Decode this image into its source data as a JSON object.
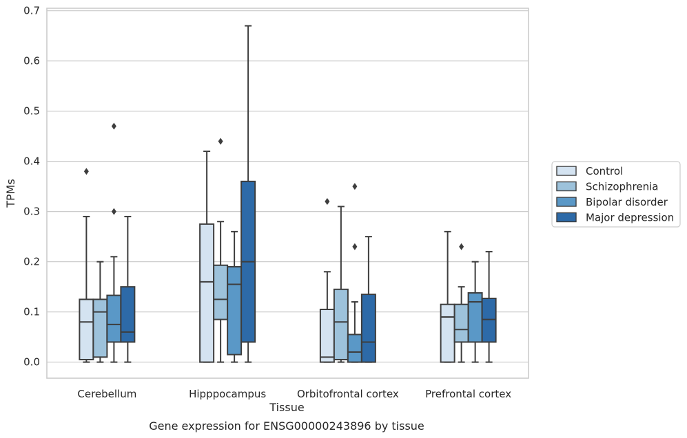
{
  "caption": "Gene expression for ENSG00000243896 by tissue",
  "chart_data": {
    "type": "box",
    "title": "",
    "xlabel": "Tissue",
    "ylabel": "TPMs",
    "ylim": [
      -0.032,
      0.705
    ],
    "yticks": [
      0.0,
      0.1,
      0.2,
      0.3,
      0.4,
      0.5,
      0.6,
      0.7
    ],
    "ytick_labels": [
      "0.0",
      "0.1",
      "0.2",
      "0.3",
      "0.4",
      "0.5",
      "0.6",
      "0.7"
    ],
    "grid": "horizontal",
    "legend_position": "right",
    "categories": [
      "Cerebellum",
      "Hipppocampus",
      "Orbitofrontal cortex",
      "Prefrontal cortex"
    ],
    "series": [
      {
        "name": "Control",
        "color": "#d4e3f1",
        "boxes": [
          {
            "whislo": 0.0,
            "q1": 0.005,
            "med": 0.08,
            "q3": 0.125,
            "whishi": 0.29,
            "fliers": [
              0.38
            ]
          },
          {
            "whislo": 0.0,
            "q1": 0.0,
            "med": 0.16,
            "q3": 0.275,
            "whishi": 0.42,
            "fliers": []
          },
          {
            "whislo": 0.0,
            "q1": 0.0,
            "med": 0.01,
            "q3": 0.105,
            "whishi": 0.18,
            "fliers": [
              0.32
            ]
          },
          {
            "whislo": 0.0,
            "q1": 0.0,
            "med": 0.09,
            "q3": 0.115,
            "whishi": 0.26,
            "fliers": []
          }
        ]
      },
      {
        "name": "Schizophrenia",
        "color": "#9dc2db",
        "boxes": [
          {
            "whislo": 0.0,
            "q1": 0.01,
            "med": 0.1,
            "q3": 0.125,
            "whishi": 0.2,
            "fliers": []
          },
          {
            "whislo": 0.0,
            "q1": 0.085,
            "med": 0.125,
            "q3": 0.193,
            "whishi": 0.28,
            "fliers": [
              0.44
            ]
          },
          {
            "whislo": 0.0,
            "q1": 0.005,
            "med": 0.08,
            "q3": 0.145,
            "whishi": 0.31,
            "fliers": []
          },
          {
            "whislo": 0.0,
            "q1": 0.04,
            "med": 0.065,
            "q3": 0.115,
            "whishi": 0.15,
            "fliers": [
              0.23
            ]
          }
        ]
      },
      {
        "name": "Bipolar disorder",
        "color": "#5a98c7",
        "boxes": [
          {
            "whislo": 0.0,
            "q1": 0.04,
            "med": 0.075,
            "q3": 0.133,
            "whishi": 0.21,
            "fliers": [
              0.3,
              0.47
            ]
          },
          {
            "whislo": 0.0,
            "q1": 0.015,
            "med": 0.155,
            "q3": 0.19,
            "whishi": 0.26,
            "fliers": []
          },
          {
            "whislo": 0.0,
            "q1": 0.0,
            "med": 0.02,
            "q3": 0.055,
            "whishi": 0.12,
            "fliers": [
              0.23,
              0.35
            ]
          },
          {
            "whislo": 0.0,
            "q1": 0.04,
            "med": 0.12,
            "q3": 0.138,
            "whishi": 0.2,
            "fliers": []
          }
        ]
      },
      {
        "name": "Major depression",
        "color": "#2d6aa8",
        "boxes": [
          {
            "whislo": 0.0,
            "q1": 0.04,
            "med": 0.06,
            "q3": 0.15,
            "whishi": 0.29,
            "fliers": []
          },
          {
            "whislo": 0.0,
            "q1": 0.04,
            "med": 0.2,
            "q3": 0.36,
            "whishi": 0.67,
            "fliers": []
          },
          {
            "whislo": 0.0,
            "q1": 0.0,
            "med": 0.04,
            "q3": 0.135,
            "whishi": 0.25,
            "fliers": []
          },
          {
            "whislo": 0.0,
            "q1": 0.04,
            "med": 0.085,
            "q3": 0.127,
            "whishi": 0.22,
            "fliers": []
          }
        ]
      }
    ]
  }
}
